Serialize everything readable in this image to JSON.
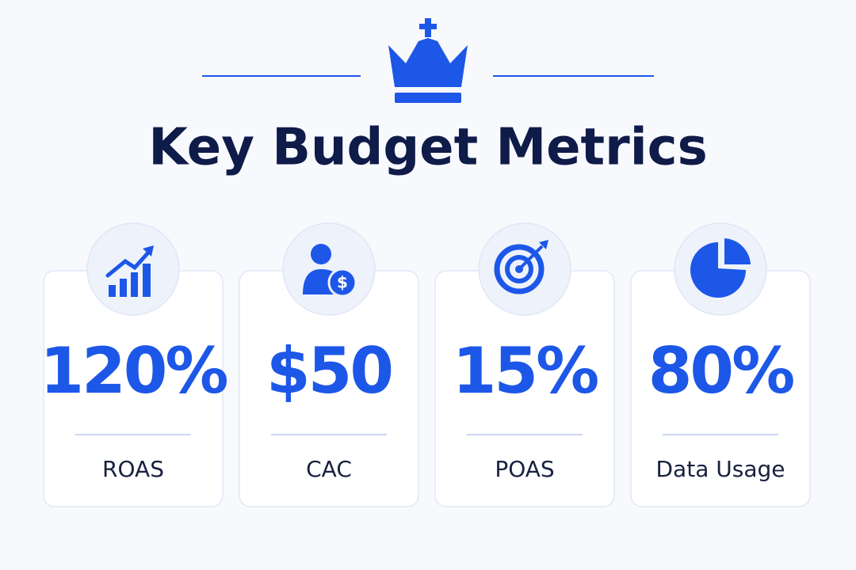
{
  "header": {
    "title": "Key Budget Metrics"
  },
  "cards": [
    {
      "value": "120%",
      "label": "ROAS"
    },
    {
      "value": "$50",
      "label": "CAC"
    },
    {
      "value": "15%",
      "label": "POAS"
    },
    {
      "value": "80%",
      "label": "Data Usage"
    }
  ]
}
